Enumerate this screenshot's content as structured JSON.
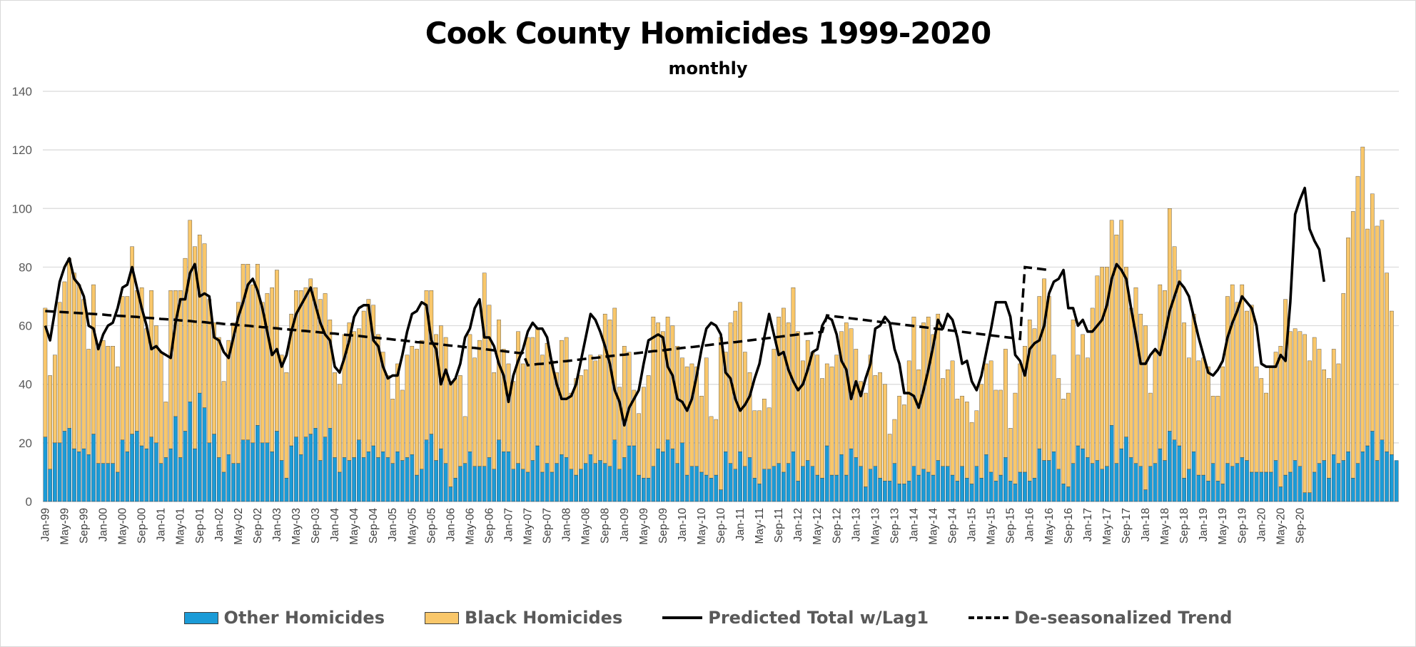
{
  "chart_data": {
    "type": "bar",
    "title": "Cook County Homicides 1999-2020",
    "subtitle": "monthly",
    "xlabel": "",
    "ylabel": "",
    "ylim": [
      0,
      140
    ],
    "yticks": [
      0,
      20,
      40,
      60,
      80,
      100,
      120,
      140
    ],
    "grid": true,
    "legend_position": "bottom",
    "stacked": true,
    "x_start": "Jan-99",
    "x_tick_labels": [
      "Jan-99",
      "May-99",
      "Sep-99",
      "Jan-00",
      "May-00",
      "Sep-00",
      "Jan-01",
      "May-01",
      "Sep-01",
      "Jan-02",
      "May-02",
      "Sep-02",
      "Jan-03",
      "May-03",
      "Sep-03",
      "Jan-04",
      "May-04",
      "Sep-04",
      "Jan-05",
      "May-05",
      "Sep-05",
      "Jan-06",
      "May-06",
      "Sep-06",
      "Jan-07",
      "May-07",
      "Sep-07",
      "Jan-08",
      "May-08",
      "Sep-08",
      "Jan-09",
      "May-09",
      "Sep-09",
      "Jan-10",
      "May-10",
      "Sep-10",
      "Jan-11",
      "May-11",
      "Sep-11",
      "Jan-12",
      "May-12",
      "Sep-12",
      "Jan-13",
      "May-13",
      "Sep-13",
      "Jan-14",
      "May-14",
      "Sep-14",
      "Jan-15",
      "May-15",
      "Sep-15",
      "Jan-16",
      "May-16",
      "Sep-16",
      "Jan-17",
      "May-17",
      "Sep-17",
      "Jan-18",
      "May-18",
      "Sep-18",
      "Jan-19",
      "May-19",
      "Sep-19",
      "Jan-20",
      "May-20",
      "Sep-20"
    ],
    "series": [
      {
        "name": "Other Homicides",
        "kind": "bar",
        "color": "#1B9BD7",
        "values": [
          22,
          11,
          20,
          20,
          24,
          25,
          18,
          17,
          18,
          16,
          23,
          13,
          13,
          13,
          13,
          10,
          21,
          17,
          23,
          24,
          19,
          18,
          22,
          20,
          13,
          15,
          18,
          29,
          15,
          24,
          34,
          18,
          37,
          32,
          20,
          23,
          15,
          10,
          16,
          13,
          13,
          21,
          21,
          20,
          26,
          20,
          20,
          17,
          24,
          14,
          8,
          19,
          22,
          16,
          22,
          23,
          25,
          14,
          22,
          25,
          15,
          10,
          15,
          14,
          15,
          21,
          15,
          17,
          19,
          15,
          17,
          15,
          13,
          17,
          14,
          15,
          16,
          9,
          11,
          21,
          23,
          14,
          18,
          13,
          5,
          8,
          12,
          13,
          17,
          12,
          12,
          12,
          15,
          11,
          21,
          17,
          17,
          11,
          13,
          11,
          10,
          14,
          19,
          10,
          13,
          10,
          13,
          16,
          15,
          11,
          9,
          11,
          13,
          16,
          13,
          14,
          13,
          12,
          21,
          11,
          15,
          19,
          19,
          9,
          8,
          8,
          12,
          18,
          17,
          21,
          18,
          13,
          20,
          9,
          12,
          12,
          10,
          9,
          8,
          9,
          4,
          17,
          13,
          11,
          17,
          12,
          15,
          8,
          6,
          11,
          11,
          12,
          13,
          10,
          13,
          17,
          7,
          12,
          14,
          12,
          9,
          8,
          19,
          9,
          9,
          16,
          9,
          18,
          15,
          12,
          5,
          11,
          12,
          8,
          7,
          7,
          13,
          6,
          6,
          7,
          12,
          9,
          11,
          10,
          9,
          14,
          12,
          12,
          9,
          7,
          12,
          8,
          6,
          12,
          8,
          16,
          10,
          7,
          9,
          15,
          7,
          6,
          10,
          10,
          7,
          8,
          18,
          14,
          14,
          17,
          11,
          6,
          5,
          13,
          19,
          18,
          15,
          13,
          14,
          11,
          12,
          26,
          13,
          18,
          22,
          15,
          13,
          12,
          4,
          12,
          13,
          18,
          14,
          24,
          21,
          19,
          8,
          11,
          17,
          9,
          9,
          7,
          13,
          7,
          6,
          13,
          12,
          13,
          15,
          14,
          10,
          10,
          10,
          10,
          10,
          14,
          5,
          9,
          10,
          14,
          12,
          3,
          3,
          10,
          13,
          14,
          8,
          16,
          13,
          14,
          17,
          8,
          13,
          17,
          19,
          24,
          14,
          21,
          17,
          16,
          14
        ]
      },
      {
        "name": "Black Homicides",
        "kind": "bar",
        "color": "#F9C76A",
        "values": [
          44,
          32,
          30,
          48,
          51,
          58,
          60,
          57,
          51,
          36,
          51,
          40,
          42,
          40,
          40,
          36,
          49,
          53,
          64,
          48,
          54,
          41,
          50,
          40,
          38,
          19,
          54,
          43,
          57,
          59,
          62,
          69,
          54,
          56,
          49,
          38,
          41,
          31,
          39,
          48,
          55,
          60,
          60,
          54,
          55,
          48,
          51,
          56,
          55,
          36,
          36,
          45,
          50,
          56,
          51,
          53,
          48,
          55,
          49,
          37,
          29,
          30,
          42,
          47,
          43,
          38,
          50,
          52,
          48,
          42,
          34,
          28,
          22,
          30,
          24,
          35,
          37,
          43,
          44,
          51,
          49,
          43,
          42,
          43,
          36,
          34,
          31,
          16,
          40,
          37,
          43,
          66,
          52,
          33,
          41,
          35,
          30,
          30,
          45,
          36,
          46,
          42,
          40,
          40,
          41,
          38,
          31,
          39,
          41,
          26,
          33,
          32,
          32,
          34,
          35,
          36,
          51,
          50,
          45,
          28,
          38,
          32,
          19,
          21,
          31,
          35,
          51,
          43,
          41,
          42,
          42,
          40,
          29,
          37,
          35,
          34,
          26,
          40,
          21,
          19,
          52,
          34,
          48,
          54,
          51,
          39,
          29,
          23,
          25,
          24,
          21,
          40,
          50,
          56,
          48,
          56,
          51,
          36,
          41,
          39,
          41,
          34,
          28,
          37,
          41,
          42,
          52,
          41,
          37,
          29,
          32,
          39,
          31,
          36,
          33,
          16,
          15,
          30,
          27,
          41,
          51,
          36,
          50,
          53,
          48,
          50,
          30,
          33,
          39,
          28,
          24,
          26,
          21,
          19,
          32,
          31,
          38,
          31,
          29,
          37,
          18,
          31,
          37,
          43,
          55,
          51,
          52,
          62,
          56,
          33,
          31,
          29,
          32,
          49,
          31,
          39,
          34,
          53,
          63,
          69,
          68,
          70,
          78,
          78,
          58,
          51,
          60,
          52,
          56,
          25,
          38,
          56,
          58,
          76,
          66,
          60,
          53,
          38,
          47,
          39,
          40,
          39,
          23,
          29,
          40,
          57,
          62,
          55,
          59,
          51,
          57,
          36,
          32,
          27,
          36,
          37,
          48,
          60,
          48,
          45,
          46,
          54,
          45,
          46,
          39,
          31,
          34,
          36,
          34,
          57,
          73,
          91,
          98,
          104,
          74,
          81,
          80,
          75,
          61,
          49
        ]
      },
      {
        "name": "Predicted Total w/Lag1",
        "kind": "line",
        "color": "#000000",
        "values": [
          60,
          55,
          65,
          75,
          80,
          83,
          76,
          74,
          70,
          60,
          59,
          52,
          57,
          60,
          61,
          66,
          73,
          74,
          80,
          73,
          66,
          60,
          52,
          53,
          51,
          50,
          49,
          61,
          69,
          69,
          78,
          81,
          70,
          71,
          70,
          56,
          55,
          51,
          49,
          56,
          63,
          68,
          74,
          76,
          72,
          66,
          58,
          50,
          52,
          46,
          50,
          58,
          64,
          67,
          70,
          73,
          67,
          61,
          57,
          55,
          46,
          44,
          49,
          55,
          63,
          66,
          67,
          67,
          55,
          53,
          46,
          42,
          43,
          43,
          50,
          58,
          64,
          65,
          68,
          67,
          55,
          52,
          40,
          45,
          40,
          42,
          47,
          56,
          59,
          66,
          69,
          56,
          56,
          53,
          47,
          43,
          34,
          43,
          48,
          52,
          58,
          61,
          59,
          59,
          56,
          47,
          40,
          35,
          35,
          36,
          40,
          48,
          56,
          64,
          62,
          58,
          53,
          47,
          38,
          34,
          26,
          32,
          35,
          38,
          47,
          55,
          56,
          57,
          56,
          46,
          43,
          35,
          34,
          31,
          35,
          43,
          52,
          59,
          61,
          60,
          57,
          44,
          42,
          35,
          31,
          33,
          36,
          42,
          47,
          56,
          64,
          57,
          50,
          51,
          45,
          41,
          38,
          40,
          45,
          51,
          52,
          60,
          63,
          62,
          57,
          48,
          45,
          35,
          41,
          36,
          42,
          47,
          59,
          60,
          63,
          61,
          52,
          47,
          37,
          37,
          36,
          32,
          38,
          45,
          53,
          62,
          59,
          64,
          62,
          56,
          47,
          48,
          41,
          38,
          43,
          51,
          59,
          68,
          68,
          68,
          63,
          50,
          48,
          43,
          52,
          54,
          55,
          60,
          71,
          75,
          76,
          79,
          66,
          66,
          60,
          62,
          58,
          58,
          60,
          62,
          67,
          76,
          81,
          79,
          76,
          66,
          57,
          47,
          47,
          50,
          52,
          50,
          57,
          65,
          70,
          75,
          73,
          70,
          63,
          56,
          50,
          44,
          43,
          45,
          48,
          56,
          61,
          65,
          70,
          68,
          66,
          60,
          47,
          46,
          46,
          46,
          50,
          48,
          68,
          98,
          103,
          107,
          93,
          89,
          86,
          75
        ]
      },
      {
        "name": "De-seasonalized Trend",
        "kind": "line",
        "dashed": true,
        "color": "#000000",
        "values": [
          65,
          64.9,
          64.8,
          64.7,
          64.6,
          64.5,
          64.4,
          64.3,
          64.2,
          64.1,
          64,
          63.9,
          63.8,
          63.6,
          63.5,
          63.4,
          63.3,
          63.2,
          63.1,
          63,
          62.8,
          62.7,
          62.6,
          62.5,
          62.3,
          62.2,
          62.1,
          62,
          61.8,
          61.7,
          61.6,
          61.4,
          61.3,
          61.2,
          61,
          60.9,
          60.8,
          60.6,
          60.5,
          60.4,
          60.2,
          60.1,
          60,
          59.8,
          59.7,
          59.5,
          59.4,
          59.2,
          59.1,
          58.9,
          58.8,
          58.6,
          58.5,
          58.3,
          58.2,
          58,
          57.9,
          57.7,
          57.6,
          57.4,
          57.3,
          57.1,
          56.9,
          56.8,
          56.6,
          56.5,
          56.3,
          56.1,
          56,
          55.8,
          55.6,
          55.5,
          55.3,
          55.1,
          55,
          54.8,
          54.6,
          54.4,
          54.3,
          54.1,
          53.9,
          53.8,
          53.6,
          53.4,
          53.2,
          53.1,
          52.9,
          52.7,
          52.5,
          52.4,
          52.2,
          52,
          51.8,
          51.6,
          51.5,
          51.3,
          51.1,
          50.9,
          50.7,
          50.6,
          46.5,
          46.7,
          46.9,
          47,
          47.2,
          47.4,
          47.6,
          47.8,
          47.9,
          48.1,
          48.3,
          48.5,
          48.7,
          48.9,
          49,
          49.2,
          49.4,
          49.6,
          49.8,
          50,
          50.1,
          50.3,
          50.5,
          50.7,
          50.9,
          51.1,
          51.3,
          51.4,
          51.6,
          51.8,
          52,
          52.2,
          52.4,
          52.6,
          52.7,
          52.9,
          53.1,
          53.3,
          53.5,
          53.7,
          53.9,
          54.1,
          54.3,
          54.4,
          54.6,
          54.8,
          55,
          55.2,
          55.4,
          55.6,
          55.8,
          56,
          56.2,
          56.4,
          56.6,
          56.8,
          57,
          57.2,
          57.3,
          57.5,
          57.7,
          57.9,
          63.5,
          63.3,
          63.1,
          62.9,
          62.7,
          62.5,
          62.3,
          62.1,
          61.9,
          61.7,
          61.5,
          61.3,
          61.1,
          60.9,
          60.7,
          60.5,
          60.3,
          60.1,
          59.9,
          59.7,
          59.5,
          59.3,
          59.1,
          58.9,
          58.7,
          58.5,
          58.3,
          58.1,
          57.9,
          57.7,
          57.5,
          57.3,
          57.1,
          56.9,
          56.7,
          56.5,
          56.3,
          56.1,
          55.9,
          55.7,
          55.5,
          80,
          79.8,
          79.6,
          79.4,
          79.2,
          79
        ]
      }
    ],
    "legend": [
      {
        "label": "Other Homicides",
        "kind": "swatch",
        "color": "#1B9BD7"
      },
      {
        "label": "Black Homicides",
        "kind": "swatch",
        "color": "#F9C76A"
      },
      {
        "label": "Predicted Total w/Lag1",
        "kind": "line"
      },
      {
        "label": "De-seasonalized Trend",
        "kind": "dashed-line"
      }
    ]
  }
}
